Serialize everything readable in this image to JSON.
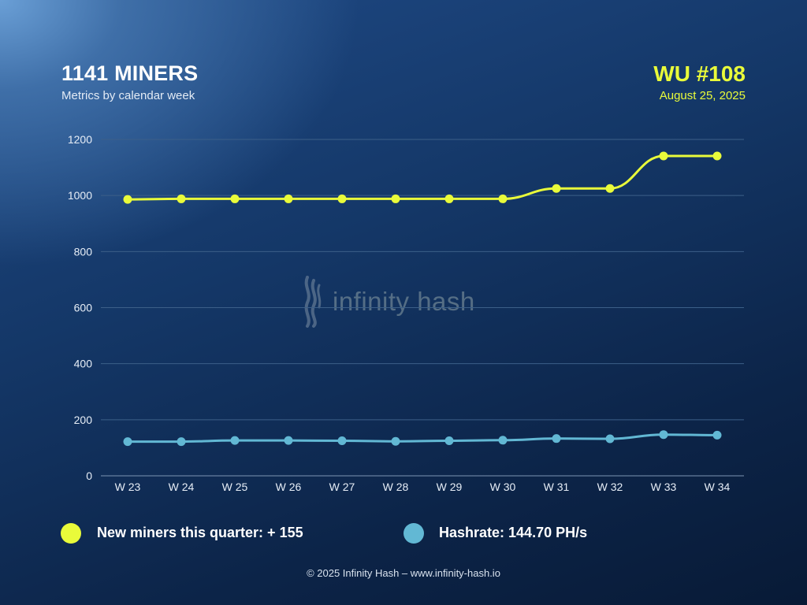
{
  "header": {
    "title": "1141 MINERS",
    "subtitle": "Metrics by calendar week",
    "wu": "WU #108",
    "date": "August 25, 2025"
  },
  "watermark": {
    "text": "infinity hash",
    "icon": "infinity-hash-logo-icon"
  },
  "legend": [
    {
      "label": "New miners this quarter: + 155",
      "color": "#e9fb3a"
    },
    {
      "label": "Hashrate: 144.70 PH/s",
      "color": "#62b8d4"
    }
  ],
  "footer": "© 2025 Infinity Hash – www.infinity-hash.io",
  "colors": {
    "miners": "#e9fb3a",
    "hashrate": "#62b8d4",
    "grid": "#3c5f88"
  },
  "chart_data": {
    "type": "line",
    "categories": [
      "W 23",
      "W 24",
      "W 25",
      "W 26",
      "W 27",
      "W 28",
      "W 29",
      "W 30",
      "W 31",
      "W 32",
      "W 33",
      "W 34"
    ],
    "series": [
      {
        "values": [
          986,
          988,
          988,
          988,
          988,
          988,
          988,
          988,
          1025,
          1025,
          1141,
          1141
        ]
      },
      {
        "values": [
          122,
          122,
          126,
          126,
          125,
          123,
          125,
          127,
          133,
          132,
          147,
          145
        ]
      }
    ],
    "yticks": [
      0,
      200,
      400,
      600,
      800,
      1000,
      1200
    ],
    "ylim": [
      0,
      1200
    ],
    "grid": true
  }
}
